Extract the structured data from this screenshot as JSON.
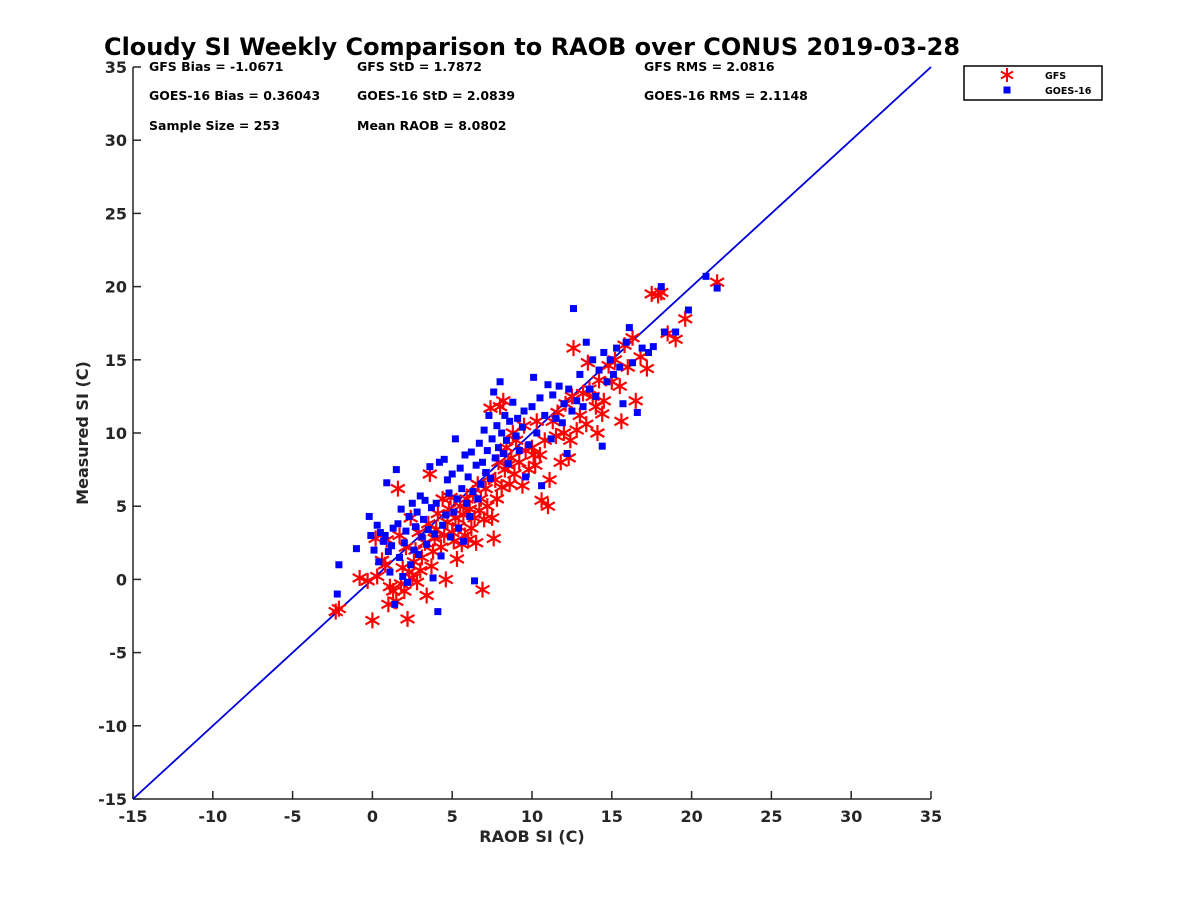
{
  "chart_data": {
    "type": "scatter",
    "title": "Cloudy SI Weekly Comparison to RAOB over CONUS 2019-03-28",
    "xlabel": "RAOB SI (C)",
    "ylabel": "Measured SI (C)",
    "xlim": [
      -15,
      35
    ],
    "ylim": [
      -15,
      35
    ],
    "xticks": [
      -15,
      -10,
      -5,
      0,
      5,
      10,
      15,
      20,
      25,
      30,
      35
    ],
    "yticks": [
      -15,
      -10,
      -5,
      0,
      5,
      10,
      15,
      20,
      25,
      30,
      35
    ],
    "grid": false,
    "legend_position": "top-right-outside",
    "reference_line": {
      "from": [
        -15,
        -15
      ],
      "to": [
        35,
        35
      ],
      "color": "#0000dd"
    },
    "stats": [
      "GFS Bias = -1.0671",
      "GFS StD = 1.7872",
      "GFS RMS = 2.0816",
      "GOES-16 Bias = 0.36043",
      "GOES-16 StD = 2.0839",
      "GOES-16 RMS = 2.1148",
      "Sample Size = 253",
      "Mean RAOB = 8.0802"
    ],
    "series": [
      {
        "name": "GFS",
        "color": "#ff0000",
        "marker": "asterisk",
        "points": [
          [
            -2.3,
            -2.2
          ],
          [
            -2.1,
            -2.0
          ],
          [
            -0.8,
            0.1
          ],
          [
            -0.3,
            -0.1
          ],
          [
            0.0,
            -2.8
          ],
          [
            0.2,
            2.8
          ],
          [
            0.3,
            0.2
          ],
          [
            0.6,
            1.3
          ],
          [
            0.8,
            1.0
          ],
          [
            0.9,
            2.7
          ],
          [
            1.0,
            -1.7
          ],
          [
            1.1,
            -0.5
          ],
          [
            1.3,
            -0.8
          ],
          [
            1.5,
            -1.5
          ],
          [
            1.6,
            6.2
          ],
          [
            1.7,
            3.0
          ],
          [
            1.8,
            -0.3
          ],
          [
            1.9,
            0.8
          ],
          [
            2.0,
            -0.8
          ],
          [
            2.1,
            2.2
          ],
          [
            2.2,
            -2.7
          ],
          [
            2.3,
            0.5
          ],
          [
            2.4,
            4.2
          ],
          [
            2.5,
            0.1
          ],
          [
            2.6,
            1.2
          ],
          [
            2.7,
            2.0
          ],
          [
            2.8,
            -0.2
          ],
          [
            2.9,
            3.2
          ],
          [
            3.0,
            0.6
          ],
          [
            3.1,
            1.5
          ],
          [
            3.3,
            2.5
          ],
          [
            3.4,
            -1.1
          ],
          [
            3.5,
            3.8
          ],
          [
            3.6,
            7.2
          ],
          [
            3.7,
            0.9
          ],
          [
            3.8,
            1.9
          ],
          [
            3.9,
            2.8
          ],
          [
            4.0,
            3.4
          ],
          [
            4.1,
            4.5
          ],
          [
            4.3,
            2.2
          ],
          [
            4.4,
            5.5
          ],
          [
            4.5,
            3.0
          ],
          [
            4.6,
            0.0
          ],
          [
            4.7,
            3.9
          ],
          [
            4.8,
            4.8
          ],
          [
            4.9,
            5.6
          ],
          [
            5.0,
            3.2
          ],
          [
            5.1,
            2.6
          ],
          [
            5.2,
            4.2
          ],
          [
            5.3,
            1.4
          ],
          [
            5.4,
            3.6
          ],
          [
            5.5,
            5.0
          ],
          [
            5.6,
            2.4
          ],
          [
            5.7,
            4.4
          ],
          [
            5.8,
            3.0
          ],
          [
            5.9,
            5.5
          ],
          [
            6.0,
            2.7
          ],
          [
            6.1,
            4.8
          ],
          [
            6.2,
            3.5
          ],
          [
            6.3,
            5.9
          ],
          [
            6.4,
            4.2
          ],
          [
            6.5,
            2.5
          ],
          [
            6.6,
            6.5
          ],
          [
            6.7,
            4.7
          ],
          [
            6.8,
            5.5
          ],
          [
            6.9,
            -0.7
          ],
          [
            7.0,
            4.1
          ],
          [
            7.1,
            6.2
          ],
          [
            7.2,
            5.0
          ],
          [
            7.3,
            7.0
          ],
          [
            7.4,
            11.7
          ],
          [
            7.5,
            4.2
          ],
          [
            7.6,
            2.8
          ],
          [
            7.7,
            6.8
          ],
          [
            7.8,
            5.5
          ],
          [
            7.9,
            8.0
          ],
          [
            8.0,
            11.8
          ],
          [
            8.1,
            6.3
          ],
          [
            8.2,
            12.2
          ],
          [
            8.3,
            7.5
          ],
          [
            8.4,
            9.0
          ],
          [
            8.5,
            7.8
          ],
          [
            8.6,
            6.5
          ],
          [
            8.7,
            8.3
          ],
          [
            8.8,
            10.0
          ],
          [
            8.9,
            7.2
          ],
          [
            9.0,
            9.5
          ],
          [
            9.2,
            8.0
          ],
          [
            9.4,
            6.4
          ],
          [
            9.5,
            10.5
          ],
          [
            9.6,
            8.8
          ],
          [
            9.8,
            7.5
          ],
          [
            10.0,
            9.0
          ],
          [
            10.1,
            8.5
          ],
          [
            10.2,
            7.8
          ],
          [
            10.3,
            10.8
          ],
          [
            10.5,
            8.5
          ],
          [
            10.6,
            5.4
          ],
          [
            10.8,
            9.5
          ],
          [
            11.0,
            5.0
          ],
          [
            11.1,
            6.8
          ],
          [
            11.3,
            10.8
          ],
          [
            11.5,
            9.8
          ],
          [
            11.6,
            11.4
          ],
          [
            11.8,
            8.0
          ],
          [
            12.0,
            10.0
          ],
          [
            12.1,
            12.0
          ],
          [
            12.3,
            8.3
          ],
          [
            12.4,
            9.5
          ],
          [
            12.5,
            12.5
          ],
          [
            12.6,
            15.8
          ],
          [
            12.8,
            10.2
          ],
          [
            13.0,
            11.2
          ],
          [
            13.2,
            12.7
          ],
          [
            13.4,
            10.6
          ],
          [
            13.5,
            14.8
          ],
          [
            13.6,
            13.0
          ],
          [
            13.8,
            12.5
          ],
          [
            14.0,
            11.8
          ],
          [
            14.1,
            10.0
          ],
          [
            14.2,
            13.6
          ],
          [
            14.4,
            11.3
          ],
          [
            14.5,
            12.2
          ],
          [
            14.8,
            14.6
          ],
          [
            15.0,
            13.5
          ],
          [
            15.2,
            15.0
          ],
          [
            15.5,
            13.2
          ],
          [
            15.6,
            10.8
          ],
          [
            15.8,
            16.0
          ],
          [
            16.0,
            14.5
          ],
          [
            16.3,
            16.5
          ],
          [
            16.5,
            12.2
          ],
          [
            16.8,
            15.2
          ],
          [
            17.2,
            14.4
          ],
          [
            17.5,
            19.5
          ],
          [
            17.9,
            19.4
          ],
          [
            18.1,
            19.6
          ],
          [
            18.5,
            16.8
          ],
          [
            19.0,
            16.4
          ],
          [
            19.6,
            17.8
          ],
          [
            21.6,
            20.3
          ]
        ]
      },
      {
        "name": "GOES-16",
        "color": "#0000ff",
        "marker": "square",
        "points": [
          [
            -2.2,
            -1.0
          ],
          [
            -2.1,
            1.0
          ],
          [
            -1.0,
            2.1
          ],
          [
            -0.2,
            4.3
          ],
          [
            -0.1,
            3.0
          ],
          [
            0.1,
            2.0
          ],
          [
            0.3,
            3.7
          ],
          [
            0.4,
            1.2
          ],
          [
            0.5,
            3.2
          ],
          [
            0.7,
            2.6
          ],
          [
            0.8,
            3.0
          ],
          [
            0.9,
            6.6
          ],
          [
            1.0,
            1.9
          ],
          [
            1.1,
            0.5
          ],
          [
            1.2,
            2.3
          ],
          [
            1.3,
            3.5
          ],
          [
            1.4,
            -1.7
          ],
          [
            1.5,
            7.5
          ],
          [
            1.6,
            3.8
          ],
          [
            1.7,
            1.5
          ],
          [
            1.8,
            4.8
          ],
          [
            1.9,
            0.2
          ],
          [
            2.0,
            2.5
          ],
          [
            2.1,
            3.3
          ],
          [
            2.2,
            -0.2
          ],
          [
            2.3,
            4.3
          ],
          [
            2.4,
            1.0
          ],
          [
            2.5,
            5.2
          ],
          [
            2.6,
            2.0
          ],
          [
            2.7,
            3.6
          ],
          [
            2.8,
            4.6
          ],
          [
            2.9,
            1.7
          ],
          [
            3.0,
            5.7
          ],
          [
            3.1,
            2.9
          ],
          [
            3.2,
            4.1
          ],
          [
            3.3,
            5.4
          ],
          [
            3.4,
            2.4
          ],
          [
            3.5,
            3.4
          ],
          [
            3.6,
            7.7
          ],
          [
            3.7,
            4.9
          ],
          [
            3.8,
            0.1
          ],
          [
            3.9,
            3.1
          ],
          [
            4.0,
            5.2
          ],
          [
            4.1,
            -2.2
          ],
          [
            4.2,
            8.0
          ],
          [
            4.3,
            1.6
          ],
          [
            4.4,
            3.7
          ],
          [
            4.5,
            8.2
          ],
          [
            4.6,
            4.4
          ],
          [
            4.7,
            6.8
          ],
          [
            4.8,
            5.9
          ],
          [
            4.9,
            2.9
          ],
          [
            5.0,
            7.2
          ],
          [
            5.1,
            4.6
          ],
          [
            5.2,
            9.6
          ],
          [
            5.3,
            5.5
          ],
          [
            5.4,
            3.5
          ],
          [
            5.5,
            7.6
          ],
          [
            5.6,
            6.2
          ],
          [
            5.7,
            2.6
          ],
          [
            5.8,
            8.5
          ],
          [
            5.9,
            5.2
          ],
          [
            6.0,
            7.0
          ],
          [
            6.1,
            4.3
          ],
          [
            6.2,
            8.7
          ],
          [
            6.3,
            6.0
          ],
          [
            6.4,
            -0.1
          ],
          [
            6.5,
            7.8
          ],
          [
            6.6,
            5.5
          ],
          [
            6.7,
            9.3
          ],
          [
            6.8,
            6.5
          ],
          [
            6.9,
            8.0
          ],
          [
            7.0,
            10.2
          ],
          [
            7.1,
            7.3
          ],
          [
            7.2,
            8.8
          ],
          [
            7.3,
            11.2
          ],
          [
            7.4,
            6.9
          ],
          [
            7.5,
            9.6
          ],
          [
            7.6,
            12.8
          ],
          [
            7.7,
            8.3
          ],
          [
            7.8,
            10.5
          ],
          [
            7.9,
            9.0
          ],
          [
            8.0,
            13.5
          ],
          [
            8.1,
            10.0
          ],
          [
            8.2,
            8.6
          ],
          [
            8.3,
            11.2
          ],
          [
            8.4,
            9.5
          ],
          [
            8.5,
            7.9
          ],
          [
            8.6,
            10.8
          ],
          [
            8.8,
            12.1
          ],
          [
            9.0,
            9.8
          ],
          [
            9.1,
            11.0
          ],
          [
            9.2,
            8.8
          ],
          [
            9.4,
            10.4
          ],
          [
            9.5,
            11.5
          ],
          [
            9.6,
            7.0
          ],
          [
            9.8,
            9.2
          ],
          [
            10.0,
            11.8
          ],
          [
            10.1,
            13.8
          ],
          [
            10.3,
            10.0
          ],
          [
            10.5,
            12.4
          ],
          [
            10.6,
            6.4
          ],
          [
            10.8,
            11.2
          ],
          [
            11.0,
            13.3
          ],
          [
            11.2,
            9.6
          ],
          [
            11.3,
            12.6
          ],
          [
            11.5,
            11.0
          ],
          [
            11.7,
            13.2
          ],
          [
            11.9,
            10.7
          ],
          [
            12.0,
            12.0
          ],
          [
            12.2,
            8.6
          ],
          [
            12.3,
            13.0
          ],
          [
            12.5,
            11.5
          ],
          [
            12.6,
            18.5
          ],
          [
            12.8,
            12.2
          ],
          [
            13.0,
            14.0
          ],
          [
            13.2,
            11.8
          ],
          [
            13.4,
            16.2
          ],
          [
            13.6,
            13.0
          ],
          [
            13.8,
            15.0
          ],
          [
            14.0,
            12.5
          ],
          [
            14.2,
            14.3
          ],
          [
            14.4,
            9.1
          ],
          [
            14.5,
            15.5
          ],
          [
            14.7,
            13.5
          ],
          [
            14.9,
            15.0
          ],
          [
            15.1,
            14.0
          ],
          [
            15.3,
            15.8
          ],
          [
            15.5,
            14.5
          ],
          [
            15.7,
            12.0
          ],
          [
            15.9,
            16.2
          ],
          [
            16.1,
            17.2
          ],
          [
            16.3,
            14.8
          ],
          [
            16.6,
            11.4
          ],
          [
            16.9,
            15.8
          ],
          [
            17.3,
            15.5
          ],
          [
            17.6,
            15.9
          ],
          [
            18.1,
            20.0
          ],
          [
            18.3,
            16.9
          ],
          [
            19.0,
            16.9
          ],
          [
            19.8,
            18.4
          ],
          [
            20.9,
            20.7
          ],
          [
            21.6,
            19.9
          ]
        ]
      }
    ]
  }
}
